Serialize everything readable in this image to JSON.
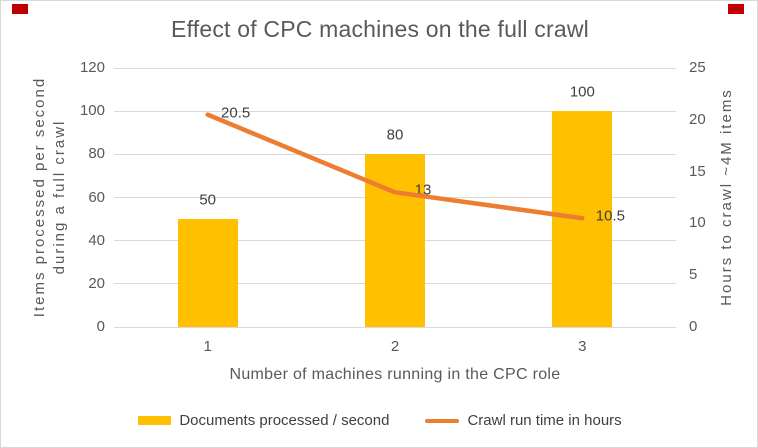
{
  "page": {
    "background": "#ffffff",
    "border_color": "#d8d8d8",
    "corner_mark_color": "#c00000"
  },
  "chart_data": {
    "type": "combo bar+line",
    "title": "Effect of CPC machines on the full crawl",
    "categories": [
      "1",
      "2",
      "3"
    ],
    "xlabel": "Number of machines running in the CPC role",
    "left_axis": {
      "title_lines": [
        "Items processed per second",
        "during a full crawl"
      ],
      "min": 0,
      "max": 120,
      "ticks": [
        120,
        100,
        80,
        60,
        40,
        20,
        0
      ]
    },
    "right_axis": {
      "title": "Hours to crawl ~4M items",
      "min": 0,
      "max": 25,
      "ticks": [
        25,
        20,
        15,
        10,
        5,
        0
      ]
    },
    "series": [
      {
        "name": "Documents processed / second",
        "type": "bar",
        "axis": "left",
        "color": "#FFC000",
        "values": [
          50,
          80,
          100
        ],
        "labels": [
          "50",
          "80",
          "100"
        ]
      },
      {
        "name": "Crawl run time in hours",
        "type": "line",
        "axis": "right",
        "color": "#ED7D31",
        "values": [
          20.5,
          13,
          10.5
        ],
        "labels": [
          "20.5",
          "13",
          "10.5"
        ]
      }
    ],
    "grid": true,
    "legend_position": "bottom"
  }
}
